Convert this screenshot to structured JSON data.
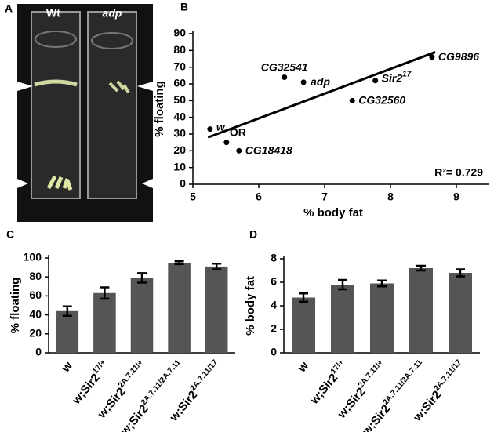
{
  "photo": {
    "panel_label": "A",
    "tube_labels": [
      "Wt",
      "adp"
    ]
  },
  "chart_data": [
    {
      "type": "scatter",
      "panel_label": "B",
      "x_label": "% body fat",
      "y_label": "% floating",
      "xlim": [
        5,
        9.5
      ],
      "xticks": [
        5,
        6,
        7,
        8,
        9
      ],
      "ylim": [
        0,
        90
      ],
      "yticks": [
        0,
        10,
        20,
        30,
        40,
        50,
        60,
        70,
        80,
        90
      ],
      "color": "#000000",
      "labels": [
        {
          "text": "w"
        },
        {
          "text": "OR"
        },
        {
          "text": "CG18418"
        },
        {
          "text": "CG32541"
        },
        {
          "text": "adp"
        },
        {
          "text": "Sir2",
          "sup": "17"
        },
        {
          "text": "CG32560"
        },
        {
          "text": "CG9896"
        }
      ],
      "italic": [
        true,
        false,
        true,
        true,
        true,
        true,
        true,
        true
      ],
      "x": [
        5.26,
        5.51,
        5.7,
        6.39,
        6.68,
        7.77,
        7.42,
        8.63
      ],
      "values": [
        33,
        25,
        20,
        64,
        61,
        62,
        50,
        76
      ],
      "fit": {
        "x": [
          5.23,
          8.68
        ],
        "y": [
          28,
          79
        ]
      },
      "annotation": "R²= 0.729"
    },
    {
      "type": "bar",
      "panel_label": "C",
      "y_label": "% floating",
      "ylim": [
        0,
        100
      ],
      "yticks": [
        0,
        20,
        40,
        60,
        80,
        100
      ],
      "color": "#555555",
      "categories": [
        {
          "text": "w"
        },
        {
          "text": "w;Sir2",
          "sup": "17/+"
        },
        {
          "text": "w;Sir2",
          "sup": "2A.7.11/+"
        },
        {
          "text": "w;Sir2",
          "sup": "2A.7.11/2A.7.11"
        },
        {
          "text": "w;Sir2",
          "sup": "2A.7.11/17"
        }
      ],
      "values": [
        44,
        63,
        79,
        95,
        91
      ],
      "errors": [
        5,
        6,
        5,
        1.5,
        3
      ]
    },
    {
      "type": "bar",
      "panel_label": "D",
      "y_label": "% body fat",
      "ylim": [
        0,
        8
      ],
      "yticks": [
        0,
        2,
        4,
        6,
        8
      ],
      "color": "#555555",
      "categories": [
        {
          "text": "w"
        },
        {
          "text": "w;Sir2",
          "sup": "17/+"
        },
        {
          "text": "w;Sir2",
          "sup": "2A.7.11/+"
        },
        {
          "text": "w;Sir2",
          "sup": "2A.7.11/2A.7.11"
        },
        {
          "text": "w;Sir2",
          "sup": "2A.7.11/17"
        }
      ],
      "values": [
        4.7,
        5.8,
        5.9,
        7.2,
        6.8
      ],
      "errors": [
        0.35,
        0.4,
        0.25,
        0.2,
        0.3
      ]
    }
  ]
}
